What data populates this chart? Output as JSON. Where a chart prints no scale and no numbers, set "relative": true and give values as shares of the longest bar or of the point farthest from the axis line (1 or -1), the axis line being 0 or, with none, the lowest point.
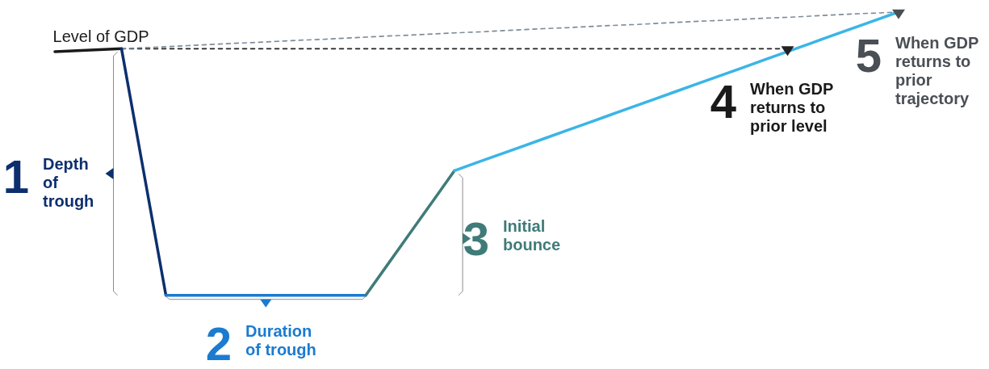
{
  "chart_data": {
    "type": "line",
    "relative": true,
    "tick_labels": false,
    "marker": "none",
    "categories": [
      null,
      null,
      null,
      null,
      null,
      null,
      null,
      null,
      null,
      null,
      null,
      null,
      null,
      null,
      null,
      null,
      null,
      null,
      null,
      null,
      null,
      null,
      null,
      null,
      null,
      null,
      null,
      null,
      null,
      null,
      null,
      null,
      null,
      null,
      null,
      null,
      null,
      null,
      null
    ],
    "series": [
      {
        "color": "#1a1a1a",
        "values": [
          0.86,
          0.863,
          0.867,
          0.87,
          null,
          null,
          null,
          null,
          null,
          null,
          null,
          null,
          null,
          null,
          null,
          null,
          null,
          null,
          null,
          null,
          null,
          null,
          null,
          null,
          null,
          null,
          null,
          null,
          null,
          null,
          null,
          null,
          null,
          null,
          null,
          null,
          null,
          null,
          null
        ]
      },
      {
        "color": "#0d2f6e",
        "values": [
          null,
          null,
          null,
          0.87,
          0.435,
          0,
          null,
          null,
          null,
          null,
          null,
          null,
          null,
          null,
          null,
          null,
          null,
          null,
          null,
          null,
          null,
          null,
          null,
          null,
          null,
          null,
          null,
          null,
          null,
          null,
          null,
          null,
          null,
          null,
          null,
          null,
          null,
          null,
          null
        ]
      },
      {
        "color": "#1b7bd0",
        "values": [
          null,
          null,
          null,
          null,
          null,
          0,
          0,
          0,
          0,
          0,
          0,
          0,
          0,
          0,
          0,
          null,
          null,
          null,
          null,
          null,
          null,
          null,
          null,
          null,
          null,
          null,
          null,
          null,
          null,
          null,
          null,
          null,
          null,
          null,
          null,
          null,
          null,
          null,
          null
        ]
      },
      {
        "color": "#3f7b79",
        "values": [
          null,
          null,
          null,
          null,
          null,
          null,
          null,
          null,
          null,
          null,
          null,
          null,
          null,
          null,
          0,
          0.11,
          0.22,
          0.33,
          0.44,
          null,
          null,
          null,
          null,
          null,
          null,
          null,
          null,
          null,
          null,
          null,
          null,
          null,
          null,
          null,
          null,
          null,
          null,
          null,
          null
        ]
      },
      {
        "color": "#3bb5e6",
        "values": [
          null,
          null,
          null,
          null,
          null,
          null,
          null,
          null,
          null,
          null,
          null,
          null,
          null,
          null,
          null,
          null,
          null,
          null,
          0.44,
          0.468,
          0.496,
          0.524,
          0.552,
          0.58,
          0.608,
          0.636,
          0.664,
          0.692,
          0.72,
          0.748,
          0.776,
          0.804,
          0.832,
          0.86,
          0.888,
          0.916,
          0.944,
          0.972,
          1
        ]
      },
      {
        "color": "#222222",
        "line_style": "dashed",
        "values": [
          null,
          null,
          null,
          0.87,
          0.87,
          0.87,
          0.87,
          0.87,
          0.87,
          0.87,
          0.87,
          0.87,
          0.87,
          0.87,
          0.87,
          0.87,
          0.87,
          0.87,
          0.87,
          0.87,
          0.87,
          0.87,
          0.87,
          0.87,
          0.87,
          0.87,
          0.87,
          0.87,
          0.87,
          0.87,
          0.87,
          0.87,
          0.87,
          0.87,
          null,
          null,
          null,
          null,
          null
        ]
      },
      {
        "color": "#7f8c99",
        "line_style": "dashed",
        "values": [
          null,
          null,
          null,
          0.87,
          0.874,
          0.877,
          0.881,
          0.885,
          0.889,
          0.892,
          0.896,
          0.9,
          0.903,
          0.907,
          0.911,
          0.915,
          0.918,
          0.922,
          0.926,
          0.929,
          0.933,
          0.937,
          0.941,
          0.944,
          0.948,
          0.952,
          0.955,
          0.959,
          0.963,
          0.967,
          0.97,
          0.974,
          0.978,
          0.981,
          0.985,
          0.989,
          0.993,
          0.996,
          1
        ]
      }
    ],
    "annotations": [
      "Level of GDP",
      "1 Depth of trough",
      "2 Duration of trough",
      "3 Initial bounce",
      "4 When GDP returns to prior level",
      "5 When GDP returns to prior trajectory"
    ]
  }
}
